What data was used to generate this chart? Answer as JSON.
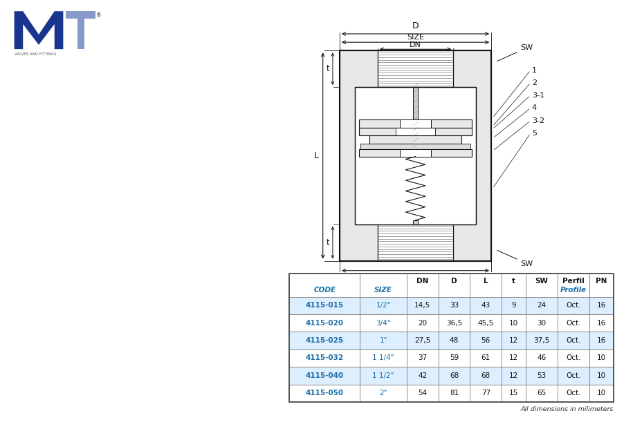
{
  "rows": [
    [
      "4115-015",
      "1/2\"",
      "14,5",
      "33",
      "43",
      "9",
      "24",
      "Oct.",
      "16"
    ],
    [
      "4115-020",
      "3/4\"",
      "20",
      "36,5",
      "45,5",
      "10",
      "30",
      "Oct.",
      "16"
    ],
    [
      "4115-025",
      "1\"",
      "27,5",
      "48",
      "56",
      "12",
      "37,5",
      "Oct.",
      "16"
    ],
    [
      "4115-032",
      "1 1/4\"",
      "37",
      "59",
      "61",
      "12",
      "46",
      "Oct.",
      "10"
    ],
    [
      "4115-040",
      "1 1/2\"",
      "42",
      "68",
      "68",
      "12",
      "53",
      "Oct.",
      "10"
    ],
    [
      "4115-050",
      "2\"",
      "54",
      "81",
      "77",
      "15",
      "65",
      "Oct.",
      "10"
    ]
  ],
  "shaded_rows": [
    0,
    2,
    4
  ],
  "shade_color": "#ddeeff",
  "code_color": "#1a6fa8",
  "size_color": "#1a6fa8",
  "header_text_color_blue": "#1a6fa8",
  "normal_text_color": "#111111",
  "footer_note": "All dimensions in milimeters",
  "col_headers_top": [
    "",
    "",
    "DN",
    "D",
    "L",
    "t",
    "SW",
    "Perfil",
    "PN"
  ],
  "col_headers_bot": [
    "CODE",
    "SIZE",
    "",
    "",
    "",
    "",
    "",
    "Profile",
    ""
  ],
  "col_widths": [
    1.9,
    1.25,
    0.85,
    0.85,
    0.85,
    0.65,
    0.85,
    0.85,
    0.65
  ],
  "hatch_color": "#aaaaaa",
  "line_color": "#111111",
  "bg_color": "#ffffff"
}
